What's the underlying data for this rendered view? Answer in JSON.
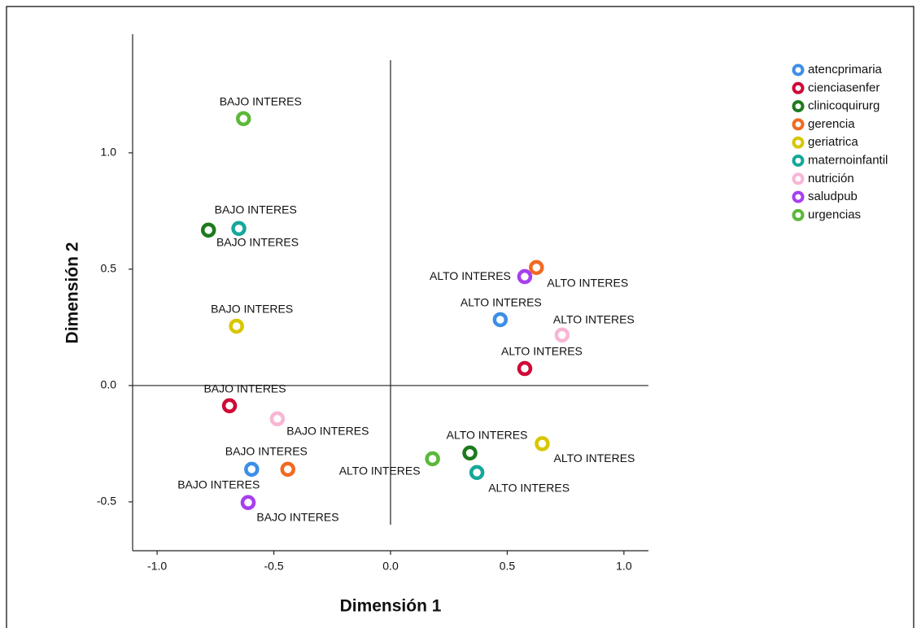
{
  "chart_data": {
    "type": "scatter",
    "x_label": "Dimensión 1",
    "y_label": "Dimensión 2",
    "xlim": [
      -1.105,
      1.105
    ],
    "ylim": [
      -0.71,
      1.51
    ],
    "xticks": [
      {
        "value": -1,
        "label": "-1.0"
      },
      -0.5,
      {
        "value": 0,
        "label": "0.0"
      },
      0.5,
      {
        "value": 1,
        "label": "1.0"
      }
    ],
    "yticks": [
      -0.5,
      {
        "value": 0,
        "label": "0.0"
      },
      0.5,
      {
        "value": 1,
        "label": "1.0"
      }
    ],
    "reference_lines": {
      "x": 0,
      "y": 0
    },
    "legend": "outside-top-right",
    "series": [
      {
        "name": "atencprimaria",
        "color": "#3d8ee6",
        "x": [
          -0.595,
          0.47
        ],
        "y": [
          -0.36,
          0.283
        ],
        "labels": [
          "BAJO INTERES",
          "ALTO INTERES"
        ]
      },
      {
        "name": "cienciasenfer",
        "color": "#cf0a36",
        "x": [
          -0.69,
          0.575
        ],
        "y": [
          -0.087,
          0.073
        ],
        "labels": [
          "BAJO INTERES",
          "ALTO INTERES"
        ]
      },
      {
        "name": "clinicoquirurg",
        "color": "#1d7a1d",
        "x": [
          -0.78,
          0.34
        ],
        "y": [
          0.668,
          -0.29
        ],
        "labels": [
          "BAJO INTERES",
          "ALTO INTERES"
        ]
      },
      {
        "name": "gerencia",
        "color": "#f06a22",
        "x": [
          -0.44,
          0.625
        ],
        "y": [
          -0.36,
          0.507
        ],
        "labels": [
          "BAJO INTERES",
          "ALTO INTERES"
        ]
      },
      {
        "name": "geriatrica",
        "color": "#d8c600",
        "x": [
          -0.66,
          0.65
        ],
        "y": [
          0.255,
          -0.25
        ],
        "labels": [
          "BAJO INTERES",
          "ALTO INTERES"
        ]
      },
      {
        "name": "maternoinfantil",
        "color": "#14a89a",
        "x": [
          -0.65,
          0.37
        ],
        "y": [
          0.675,
          -0.374
        ],
        "labels": [
          "BAJO INTERES",
          "ALTO INTERES"
        ]
      },
      {
        "name": "nutrición",
        "color": "#f8b6d5",
        "x": [
          -0.485,
          0.735
        ],
        "y": [
          -0.143,
          0.217
        ],
        "labels": [
          "BAJO INTERES",
          "ALTO INTERES"
        ]
      },
      {
        "name": "saludpub",
        "color": "#a63ff0",
        "x": [
          -0.61,
          0.575
        ],
        "y": [
          -0.503,
          0.468
        ],
        "labels": [
          "BAJO INTERES",
          "ALTO INTERES"
        ]
      },
      {
        "name": "urgencias",
        "color": "#5cb83a",
        "x": [
          -0.63,
          0.18
        ],
        "y": [
          1.147,
          -0.315
        ],
        "labels": [
          "BAJO INTERES",
          "ALTO INTERES"
        ]
      }
    ]
  }
}
